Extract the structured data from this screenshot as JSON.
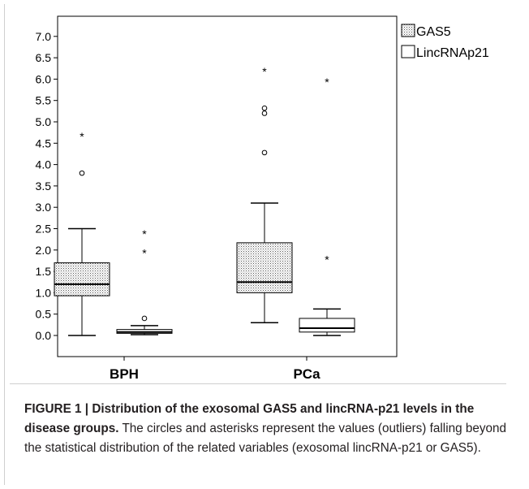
{
  "chart_data": {
    "type": "box",
    "title": "",
    "xlabel": "",
    "ylabel": "",
    "ylim": [
      -0.2,
      7.2
    ],
    "yticks": [
      "7.0",
      "6.5",
      "6.0",
      "5.5",
      "5.0",
      "4.5",
      "4.0",
      "3.5",
      "3.0",
      "2.5",
      "2.0",
      "1.5",
      "1.0",
      "0.5",
      "0.0"
    ],
    "categories": [
      "BPH",
      "PCa"
    ],
    "legend_position": "top-right",
    "series": [
      {
        "name": "GAS5",
        "fill": "dotted",
        "boxes": [
          {
            "min": 0.0,
            "q1": 0.93,
            "median": 1.2,
            "q3": 1.7,
            "max": 2.5,
            "outliers": [
              {
                "value": 3.8,
                "marker": "circle"
              },
              {
                "value": 4.68,
                "marker": "asterisk"
              }
            ]
          },
          {
            "min": 0.3,
            "q1": 1.0,
            "median": 1.25,
            "q3": 2.17,
            "max": 3.1,
            "outliers": [
              {
                "value": 4.28,
                "marker": "circle"
              },
              {
                "value": 5.2,
                "marker": "circle"
              },
              {
                "value": 5.32,
                "marker": "circle"
              },
              {
                "value": 6.2,
                "marker": "asterisk"
              }
            ]
          }
        ]
      },
      {
        "name": "LincRNAp21",
        "fill": "white",
        "boxes": [
          {
            "min": 0.02,
            "q1": 0.05,
            "median": 0.08,
            "q3": 0.14,
            "max": 0.23,
            "outliers": [
              {
                "value": 0.4,
                "marker": "circle"
              },
              {
                "value": 1.95,
                "marker": "asterisk"
              },
              {
                "value": 2.4,
                "marker": "asterisk"
              }
            ]
          },
          {
            "min": 0.0,
            "q1": 0.08,
            "median": 0.17,
            "q3": 0.4,
            "max": 0.62,
            "outliers": [
              {
                "value": 1.8,
                "marker": "asterisk"
              },
              {
                "value": 5.95,
                "marker": "asterisk"
              }
            ]
          }
        ]
      }
    ]
  },
  "caption": {
    "title": "FIGURE 1 | Distribution of the exosomal GAS5 and lincRNA-p21 levels in the disease groups.",
    "body": "The circles and asterisks represent the values (outliers) falling beyond the statistical distribution of the related variables (exosomal lincRNA-p21 or GAS5)."
  }
}
